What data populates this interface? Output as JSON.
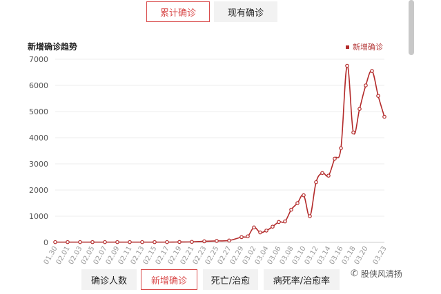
{
  "top_tabs": [
    {
      "label": "累计确诊",
      "active": true
    },
    {
      "label": "现有确诊",
      "active": false
    }
  ],
  "bottom_tabs": [
    {
      "label": "确诊人数",
      "active": false
    },
    {
      "label": "新增确诊",
      "active": true
    },
    {
      "label": "死亡/治愈",
      "active": false
    },
    {
      "label": "病死率/治愈率",
      "active": false
    }
  ],
  "watermark": "股侠风清扬",
  "colors": {
    "accent": "#d94b4b",
    "line": "#b32a2a",
    "grid": "#ececec"
  },
  "chart_data": {
    "type": "line",
    "title": "新增确诊趋势",
    "xlabel": "",
    "ylabel": "",
    "ylim": [
      0,
      7000
    ],
    "yticks": [
      0,
      1000,
      2000,
      3000,
      4000,
      5000,
      6000,
      7000
    ],
    "grid": true,
    "legend_position": "top-right",
    "x_tick_labels": [
      "01.30",
      "02.01",
      "02.03",
      "02.05",
      "02.07",
      "02.09",
      "02.11",
      "02.13",
      "02.15",
      "02.17",
      "02.19",
      "02.21",
      "02.23",
      "02.25",
      "02.27",
      "02.29",
      "03.02",
      "03.04",
      "03.06",
      "03.08",
      "03.10",
      "03.12",
      "03.14",
      "03.16",
      "03.18",
      "03.20",
      "03.23"
    ],
    "series": [
      {
        "name": "新增确诊",
        "x": [
          "01.30",
          "02.01",
          "02.03",
          "02.05",
          "02.07",
          "02.09",
          "02.11",
          "02.13",
          "02.15",
          "02.17",
          "02.19",
          "02.21",
          "02.23",
          "02.25",
          "02.27",
          "02.29",
          "03.01",
          "03.02",
          "03.03",
          "03.04",
          "03.05",
          "03.06",
          "03.07",
          "03.08",
          "03.09",
          "03.10",
          "03.11",
          "03.12",
          "03.13",
          "03.14",
          "03.15",
          "03.16",
          "03.17",
          "03.18",
          "03.19",
          "03.20",
          "03.21",
          "03.22",
          "03.23"
        ],
        "values": [
          10,
          10,
          10,
          10,
          10,
          10,
          10,
          10,
          10,
          10,
          15,
          20,
          40,
          55,
          70,
          200,
          230,
          570,
          380,
          450,
          600,
          780,
          800,
          1250,
          1500,
          1800,
          1000,
          2300,
          2650,
          2550,
          3200,
          3600,
          6750,
          4200,
          5100,
          6000,
          6550,
          5600,
          4800
        ]
      }
    ]
  }
}
